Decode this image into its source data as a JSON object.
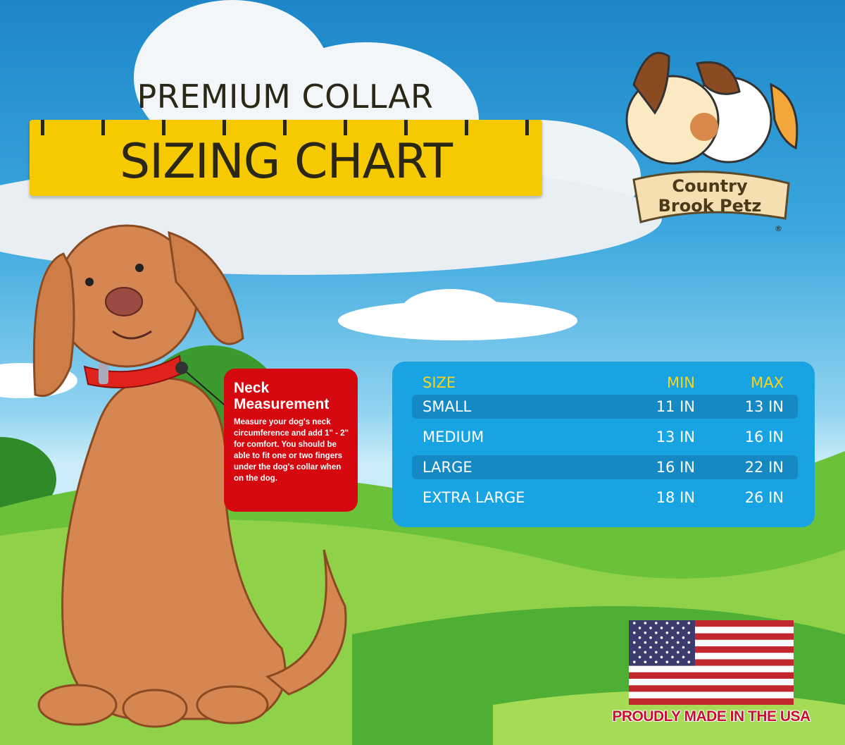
{
  "header": {
    "title_top": "PREMIUM COLLAR",
    "title_main": "SIZING CHART"
  },
  "brand": {
    "logo_line1": "Country",
    "logo_line2": "Brook Petz",
    "registered": "®"
  },
  "neck_info": {
    "title": "Neck Measurement",
    "body": "Measure your dog's neck circumference and add 1\" - 2\" for comfort. You should be able to fit one or two fingers under the dog's collar when on the dog."
  },
  "size_table": {
    "headers": [
      "SIZE",
      "MIN",
      "MAX"
    ],
    "rows": [
      [
        "SMALL",
        "11 IN",
        "13 IN"
      ],
      [
        "MEDIUM",
        "13 IN",
        "16 IN"
      ],
      [
        "LARGE",
        "16 IN",
        "22 IN"
      ],
      [
        "EXTRA LARGE",
        "18 IN",
        "26 IN"
      ]
    ]
  },
  "footer": {
    "made_in": "PROUDLY MADE IN THE USA",
    "flag_icon": "us-flag-icon"
  },
  "colors": {
    "ruler": "#f6c900",
    "table": "#18a3e2",
    "table_header": "#f7d51d",
    "neck_box": "#d5080f",
    "made_in_text": "#c8102e"
  }
}
